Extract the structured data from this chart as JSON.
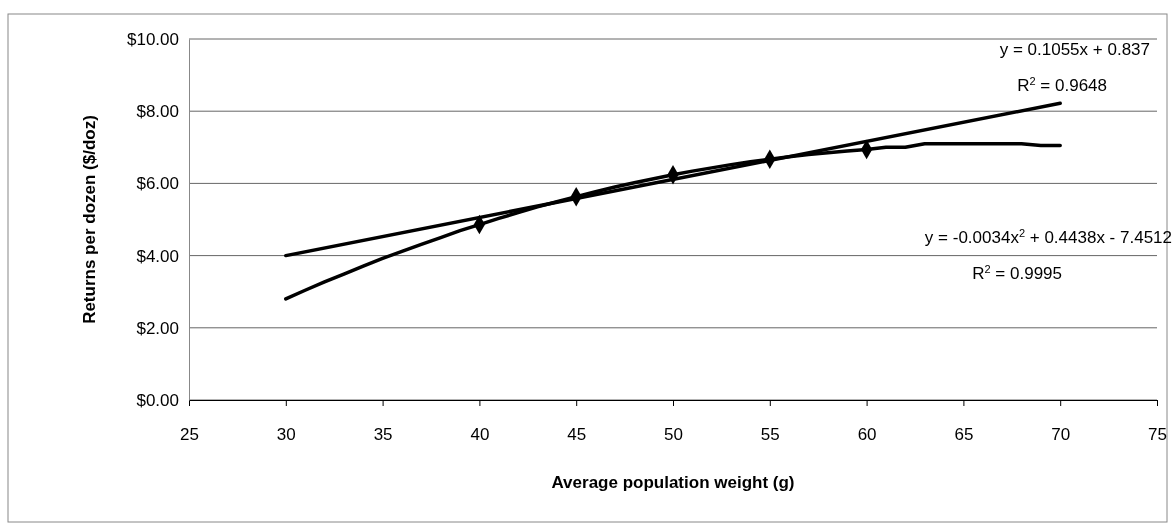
{
  "chart_data": {
    "type": "line",
    "xlabel": "Average population weight (g)",
    "ylabel": "Returns per dozen ($/doz)",
    "xlim": [
      25,
      75
    ],
    "xticks": [
      25,
      30,
      35,
      40,
      45,
      50,
      55,
      60,
      65,
      70,
      75
    ],
    "ylim": [
      0,
      10
    ],
    "yticks": [
      {
        "value": 0,
        "label": "$0.00"
      },
      {
        "value": 2,
        "label": "$2.00"
      },
      {
        "value": 4,
        "label": "$4.00"
      },
      {
        "value": 6,
        "label": "$6.00"
      },
      {
        "value": 8,
        "label": "$8.00"
      },
      {
        "value": 10,
        "label": "$10.00"
      }
    ],
    "grid": "y",
    "series": [
      {
        "color": "#000000",
        "marker": "none",
        "x": [
          30,
          31,
          32,
          33,
          34,
          35,
          36,
          37,
          38,
          39,
          40,
          41,
          42,
          43,
          44,
          45,
          46,
          47,
          48,
          49,
          50,
          51,
          52,
          53,
          54,
          55,
          56,
          57,
          58,
          59,
          60,
          61,
          62,
          63,
          64,
          65,
          66,
          67,
          68,
          69,
          70
        ],
        "values": [
          2.8,
          3.04,
          3.27,
          3.49,
          3.71,
          3.92,
          4.12,
          4.31,
          4.5,
          4.69,
          4.86,
          5.03,
          5.19,
          5.35,
          5.49,
          5.63,
          5.77,
          5.9,
          6.02,
          6.13,
          6.24,
          6.34,
          6.43,
          6.52,
          6.6,
          6.67,
          6.74,
          6.8,
          6.85,
          6.9,
          6.94,
          7.0,
          7.0,
          7.1,
          7.1,
          7.1,
          7.1,
          7.1,
          7.1,
          7.05,
          7.05
        ]
      },
      {
        "type": "scatter",
        "color": "#000000",
        "marker": "diamond",
        "x": [
          40,
          45,
          50,
          55,
          60
        ],
        "values": [
          4.86,
          5.63,
          6.24,
          6.67,
          6.94
        ]
      },
      {
        "color": "#000000",
        "marker": "none",
        "x": [
          30,
          70
        ],
        "values": [
          4.0,
          8.22
        ]
      }
    ],
    "annotations": [
      "y = 0.1055x + 0.837",
      "R$^{2}$ = 0.9648",
      "y = -0.0034x$^{2}$ + 0.4438x - 7.4512",
      "R$^{2}$ = 0.9995"
    ]
  }
}
